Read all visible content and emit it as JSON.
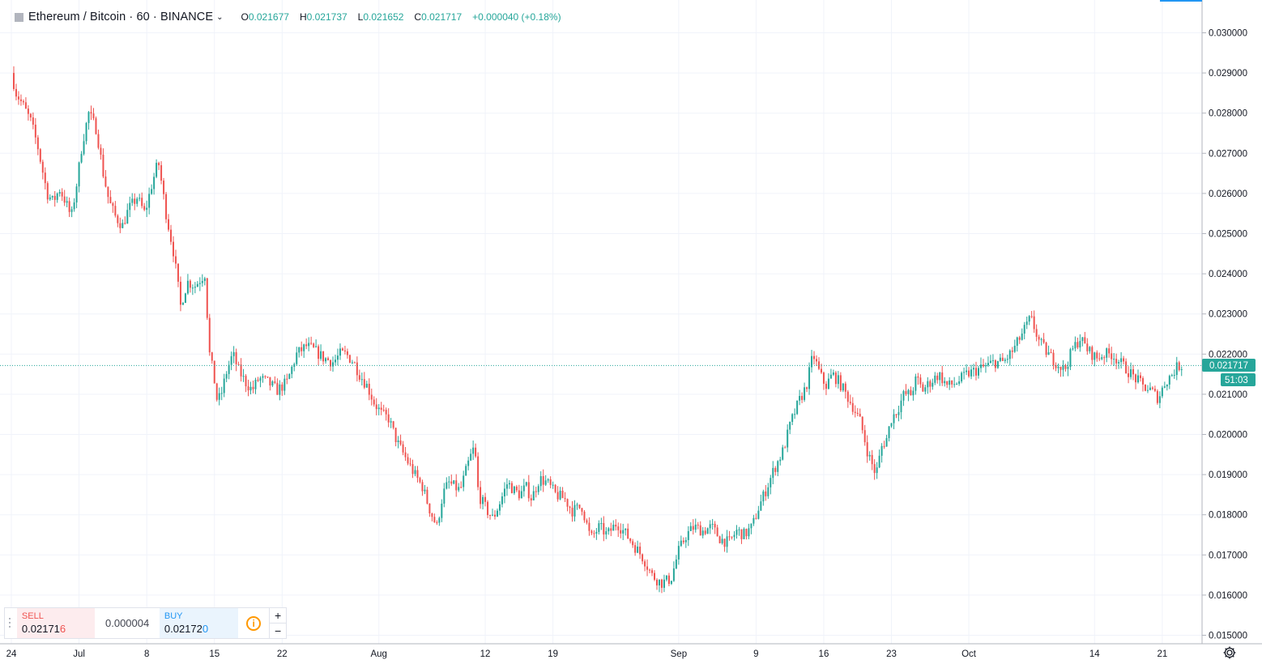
{
  "header": {
    "symbol": "Ethereum / Bitcoin · 60 · BINANCE",
    "open_label": "O",
    "open": "0.021677",
    "high_label": "H",
    "high": "0.021737",
    "low_label": "L",
    "low": "0.021652",
    "close_label": "C",
    "close": "0.021717",
    "change": "+0.000040 (+0.18%)"
  },
  "trade_panel": {
    "sell_label": "SELL",
    "sell_price_main": "0.02171",
    "sell_price_last": "6",
    "spread": "0.000004",
    "buy_label": "BUY",
    "buy_price_main": "0.02172",
    "buy_price_last": "0",
    "info_icon": "i",
    "plus": "+",
    "minus": "−"
  },
  "price_tag": {
    "price": "0.021717",
    "countdown": "51:03"
  },
  "colors": {
    "up": "#26a69a",
    "down": "#ef5350",
    "grid": "#f0f3fa",
    "price_tag": "#26a69a"
  },
  "chart_data": {
    "type": "candlestick",
    "symbol": "ETH/BTC",
    "interval": "60",
    "exchange": "BINANCE",
    "ylim": [
      0.0148,
      0.0305
    ],
    "y_ticks": [
      "0.015000",
      "0.016000",
      "0.017000",
      "0.018000",
      "0.019000",
      "0.020000",
      "0.021000",
      "0.022000",
      "0.023000",
      "0.024000",
      "0.025000",
      "0.026000",
      "0.027000",
      "0.028000",
      "0.029000",
      "0.030000"
    ],
    "x_ticks": [
      "24",
      "Jul",
      "8",
      "15",
      "22",
      "Aug",
      "12",
      "19",
      "Sep",
      "9",
      "16",
      "23",
      "Oct",
      "14",
      "21"
    ],
    "x_tick_days": [
      0,
      7,
      14,
      21,
      28,
      38,
      49,
      56,
      69,
      77,
      84,
      91,
      99,
      112,
      119
    ],
    "x_range_days": [
      0,
      123.1
    ],
    "close_path_days": [
      0,
      0.5,
      1.2,
      2,
      2.7,
      3.2,
      3.7,
      4.3,
      5,
      5.6,
      6.2,
      6.8,
      7.3,
      8,
      8.8,
      9.5,
      10.1,
      10.8,
      11.5,
      12.1,
      13,
      13.8,
      14.5,
      15.2,
      16,
      16.8,
      17.5,
      18.2,
      19,
      20,
      20.5,
      20.9,
      21.3,
      21.7,
      22.3,
      22.9,
      23.5,
      24.2,
      24.9,
      25.6,
      26.5,
      27.5,
      28.5,
      29.5,
      30.5,
      31.3,
      32.3,
      33.3,
      34,
      34.6,
      35.4,
      36,
      36.8,
      37.5,
      38.3,
      39,
      39.9,
      40.8,
      41.7,
      42.5,
      43.3,
      44,
      44.6,
      45.2,
      45.8,
      46.4,
      46.9,
      47.4,
      47.9,
      48.3,
      49.2,
      49.8,
      50.5,
      51.3,
      52,
      52.6,
      53.2,
      53.8,
      54.6,
      55.4,
      56.3,
      57.2,
      58,
      59,
      59.9,
      60.8,
      61.6,
      62.6,
      63.6,
      64.5,
      65.4,
      66.2,
      67.2,
      68.2,
      69,
      69.8,
      70.6,
      71.5,
      72.4,
      73.3,
      74.2,
      75,
      75.8,
      76.6,
      77.3,
      78,
      78.8,
      79.8,
      80.6,
      81.4,
      82.2,
      82.9,
      83.6,
      84.2,
      84.9,
      85.6,
      86.3,
      87,
      87.8,
      88.6,
      89.4,
      90,
      90.5,
      91,
      91.6,
      92.3,
      93,
      93.6,
      94.2,
      95,
      95.9,
      96.8,
      97.8,
      98.8,
      99.8,
      100.8,
      101.6,
      102.6,
      103.6,
      104.5,
      105.4,
      106.3,
      107.2,
      108,
      108.9,
      109.7,
      110.5,
      111.3,
      112.2,
      113,
      113.8,
      114.6,
      115.4,
      116.2,
      117,
      117.8,
      118.6,
      119.3,
      120,
      120.6,
      121.2,
      121.8,
      122.4,
      123,
      123.1
    ],
    "close_path": [
      0.029,
      0.0285,
      0.0282,
      0.0278,
      0.0272,
      0.0266,
      0.026,
      0.0258,
      0.0261,
      0.0258,
      0.0254,
      0.0263,
      0.0272,
      0.028,
      0.0276,
      0.0265,
      0.0258,
      0.0254,
      0.0252,
      0.0256,
      0.0259,
      0.0255,
      0.0262,
      0.0268,
      0.0255,
      0.0245,
      0.0232,
      0.0238,
      0.0237,
      0.024,
      0.022,
      0.0215,
      0.0208,
      0.021,
      0.0216,
      0.022,
      0.0216,
      0.0213,
      0.0211,
      0.0214,
      0.0213,
      0.0211,
      0.0213,
      0.022,
      0.0222,
      0.0221,
      0.0219,
      0.0218,
      0.022,
      0.022,
      0.0218,
      0.0215,
      0.0212,
      0.0208,
      0.0205,
      0.0204,
      0.0198,
      0.0194,
      0.019,
      0.0187,
      0.0181,
      0.0177,
      0.0185,
      0.0188,
      0.0187,
      0.0186,
      0.019,
      0.0194,
      0.0197,
      0.0185,
      0.0181,
      0.0179,
      0.0183,
      0.0188,
      0.0186,
      0.0185,
      0.0187,
      0.0184,
      0.0189,
      0.0188,
      0.0185,
      0.0184,
      0.0181,
      0.0182,
      0.0174,
      0.0177,
      0.0175,
      0.0178,
      0.0175,
      0.0172,
      0.0169,
      0.0165,
      0.0163,
      0.0164,
      0.0171,
      0.0175,
      0.0177,
      0.0176,
      0.0177,
      0.0174,
      0.0173,
      0.0176,
      0.0175,
      0.0177,
      0.0182,
      0.0186,
      0.0191,
      0.0196,
      0.0203,
      0.0208,
      0.0212,
      0.022,
      0.0215,
      0.0212,
      0.0215,
      0.0213,
      0.021,
      0.0207,
      0.0203,
      0.0195,
      0.019,
      0.0197,
      0.0199,
      0.0204,
      0.0206,
      0.021,
      0.021,
      0.0214,
      0.0211,
      0.0213,
      0.0215,
      0.0212,
      0.0213,
      0.0215,
      0.0216,
      0.0217,
      0.0218,
      0.0218,
      0.0221,
      0.0225,
      0.0229,
      0.0223,
      0.022,
      0.0218,
      0.0216,
      0.0221,
      0.0224,
      0.0221,
      0.0219,
      0.022,
      0.022,
      0.0218,
      0.0216,
      0.0214,
      0.0212,
      0.0211,
      0.0209,
      0.0213,
      0.0215,
      0.0217,
      0.021717
    ],
    "last_price": 0.021717
  }
}
